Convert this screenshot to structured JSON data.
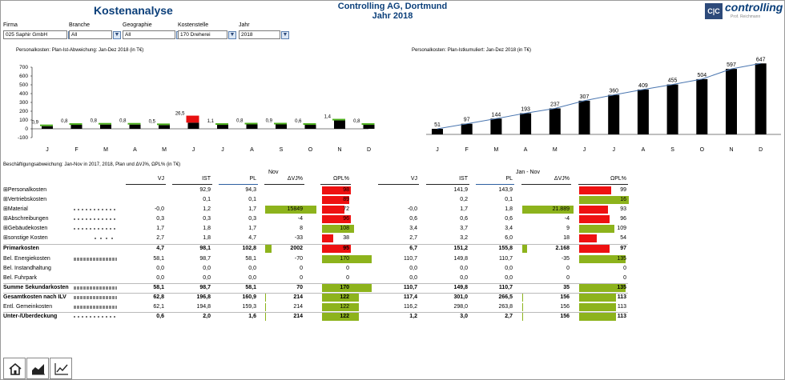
{
  "header": {
    "title": "Kostenanalyse",
    "company": "Controlling AG, Dortmund",
    "year_title": "Jahr 2018",
    "logo_brand": "controlling",
    "logo_sub": "Prof. Reichmann",
    "logo_mark": "C|C"
  },
  "filters": [
    {
      "label": "Firma",
      "value": "025 Saphir GmbH"
    },
    {
      "label": "Branche",
      "value": "All"
    },
    {
      "label": "Geographie",
      "value": "All"
    },
    {
      "label": "Kostenstelle",
      "value": "170 Dreherei"
    },
    {
      "label": "Jahr",
      "value": "2018"
    }
  ],
  "chart_data": [
    {
      "type": "bar",
      "title": "Personalkosten: Plan-Ist-Abweichung: Jan-Dez 2018 (in T€)",
      "categories": [
        "J",
        "F",
        "M",
        "A",
        "M",
        "J",
        "J",
        "A",
        "S",
        "O",
        "N",
        "D"
      ],
      "series": [
        {
          "name": "Ist",
          "values": [
            30,
            45,
            48,
            48,
            42,
            70,
            45,
            50,
            50,
            45,
            95,
            45
          ]
        },
        {
          "name": "Abweichung",
          "values": [
            0.9,
            0.8,
            0.8,
            0.8,
            0.5,
            26.5,
            1.1,
            0.8,
            0.9,
            0.6,
            1.4,
            0.8
          ]
        }
      ],
      "labels": [
        "0,9",
        "0,8",
        "0,8",
        "0,8",
        "0,5",
        "26,5",
        "1,1",
        "0,8",
        "0,9",
        "0,6",
        "1,4",
        "0,8"
      ],
      "yticks": [
        "700",
        "600",
        "500",
        "400",
        "300",
        "200",
        "100",
        "0",
        "-100"
      ],
      "ylim": [
        -100,
        700
      ]
    },
    {
      "type": "bar",
      "title": "Personalkosten: Plan-Istkumuliert: Jan-Dez 2018 (in T€)",
      "categories": [
        "J",
        "F",
        "M",
        "A",
        "M",
        "J",
        "J",
        "A",
        "S",
        "O",
        "N",
        "D"
      ],
      "values": [
        51,
        97,
        144,
        193,
        237,
        307,
        360,
        409,
        455,
        504,
        597,
        647
      ],
      "labels": [
        "51",
        "97",
        "144",
        "193",
        "237",
        "307",
        "360",
        "409",
        "455",
        "504",
        "597",
        "647"
      ],
      "ylim": [
        0,
        700
      ]
    }
  ],
  "table": {
    "title": "Beschäftigungsabweichung: Jan-Nov in 2017, 2018, Plan und ΔVJ%, ΩPL% (in T€)",
    "group_nov": "Nov",
    "group_jannov": "Jan - Nov",
    "columns": [
      "VJ",
      "IST",
      "PL",
      "ΔVJ%",
      "ΩPL%"
    ],
    "rows": [
      {
        "label": "⊞Personalkosten",
        "bold": false,
        "vj": "",
        "ist": "92,9",
        "pl": "94,3",
        "dvj": "",
        "dvj_bar": 0,
        "opl": "98",
        "opl_bar": 36,
        "opl_col": "red",
        "vj2": "",
        "ist2": "141,9",
        "pl2": "143,9",
        "dvj2": "",
        "dvj2_bar": 0,
        "opl2": "99",
        "opl2_bar": 40,
        "opl2_col": "red",
        "spark": ""
      },
      {
        "label": "⊞Vertriebskosten",
        "bold": false,
        "vj": "",
        "ist": "0,1",
        "pl": "0,1",
        "dvj": "",
        "dvj_bar": 0,
        "opl": "89",
        "opl_bar": 34,
        "opl_col": "red",
        "vj2": "",
        "ist2": "0,2",
        "pl2": "0,1",
        "dvj2": "",
        "dvj2_bar": 0,
        "opl2": "16",
        "opl2_bar": 62,
        "opl2_col": "green",
        "spark": ""
      },
      {
        "label": "⊞Material",
        "bold": false,
        "vj": "-0,0",
        "ist": "1,2",
        "pl": "1,7",
        "dvj": "15849",
        "dvj_bar": 64,
        "opl": "72",
        "opl_bar": 28,
        "opl_col": "red",
        "vj2": "-0,0",
        "ist2": "1,7",
        "pl2": "1,8",
        "dvj2": "21.889",
        "dvj2_bar": 64,
        "opl2": "93",
        "opl2_bar": 36,
        "opl2_col": "red",
        "spark": "dash"
      },
      {
        "label": "⊞Abschreibungen",
        "bold": false,
        "vj": "0,3",
        "ist": "0,3",
        "pl": "0,3",
        "dvj": "-4",
        "dvj_bar": 0,
        "opl": "96",
        "opl_bar": 36,
        "opl_col": "red",
        "vj2": "0,6",
        "ist2": "0,6",
        "pl2": "0,6",
        "dvj2": "-4",
        "dvj2_bar": 0,
        "opl2": "96",
        "opl2_bar": 38,
        "opl2_col": "red",
        "spark": "dash"
      },
      {
        "label": "⊞Gebäudekosten",
        "bold": false,
        "vj": "1,7",
        "ist": "1,8",
        "pl": "1,7",
        "dvj": "8",
        "dvj_bar": 0,
        "opl": "108",
        "opl_bar": 40,
        "opl_col": "green",
        "vj2": "3,4",
        "ist2": "3,7",
        "pl2": "3,4",
        "dvj2": "9",
        "dvj2_bar": 0,
        "opl2": "109",
        "opl2_bar": 44,
        "opl2_col": "green",
        "spark": "dash"
      },
      {
        "label": "⊞sonstige Kosten",
        "bold": false,
        "vj": "2,7",
        "ist": "1,8",
        "pl": "4,7",
        "dvj": "-33",
        "dvj_bar": 0,
        "opl": "38",
        "opl_bar": 14,
        "opl_col": "red",
        "vj2": "2,7",
        "ist2": "3,2",
        "pl2": "6,0",
        "dvj2": "18",
        "dvj2_bar": 0,
        "opl2": "54",
        "opl2_bar": 22,
        "opl2_col": "red",
        "spark": "short"
      },
      {
        "label": "Primarkosten",
        "bold": true,
        "vj": "4,7",
        "ist": "98,1",
        "pl": "102,8",
        "dvj": "2002",
        "dvj_bar": 8,
        "opl": "95",
        "opl_bar": 36,
        "opl_col": "red",
        "vj2": "6,7",
        "ist2": "151,2",
        "pl2": "155,8",
        "dvj2": "2.168",
        "dvj2_bar": 6,
        "opl2": "97",
        "opl2_bar": 38,
        "opl2_col": "red",
        "spark": ""
      },
      {
        "label": "Bel. Energiekosten",
        "bold": false,
        "vj": "58,1",
        "ist": "98,7",
        "pl": "58,1",
        "dvj": "-70",
        "dvj_bar": 0,
        "opl": "170",
        "opl_bar": 62,
        "opl_col": "green",
        "vj2": "110,7",
        "ist2": "149,8",
        "pl2": "110,7",
        "dvj2": "-35",
        "dvj2_bar": 0,
        "opl2": "135",
        "opl2_bar": 58,
        "opl2_col": "green",
        "spark": "bars"
      },
      {
        "label": "Bel. Instandhaltung",
        "bold": false,
        "vj": "0,0",
        "ist": "0,0",
        "pl": "0,0",
        "dvj": "0",
        "dvj_bar": 0,
        "opl": "0",
        "opl_bar": 0,
        "opl_col": "red",
        "vj2": "0,0",
        "ist2": "0,0",
        "pl2": "0,0",
        "dvj2": "0",
        "dvj2_bar": 0,
        "opl2": "0",
        "opl2_bar": 0,
        "opl2_col": "red",
        "spark": ""
      },
      {
        "label": "Bel. Fuhrpark",
        "bold": false,
        "vj": "0,0",
        "ist": "0,0",
        "pl": "0,0",
        "dvj": "0",
        "dvj_bar": 0,
        "opl": "0",
        "opl_bar": 0,
        "opl_col": "red",
        "vj2": "0,0",
        "ist2": "0,0",
        "pl2": "0,0",
        "dvj2": "0",
        "dvj2_bar": 0,
        "opl2": "0",
        "opl2_bar": 0,
        "opl2_col": "red",
        "spark": ""
      },
      {
        "label": "Summe Sekundarkosten",
        "bold": true,
        "vj": "58,1",
        "ist": "98,7",
        "pl": "58,1",
        "dvj": "70",
        "dvj_bar": 0,
        "opl": "170",
        "opl_bar": 62,
        "opl_col": "green",
        "vj2": "110,7",
        "ist2": "149,8",
        "pl2": "110,7",
        "dvj2": "35",
        "dvj2_bar": 0,
        "opl2": "135",
        "opl2_bar": 58,
        "opl2_col": "green",
        "spark": "bars"
      },
      {
        "label": "Gesamtkosten nach ILV",
        "bold": true,
        "vj": "62,8",
        "ist": "196,8",
        "pl": "160,9",
        "dvj": "214",
        "dvj_bar": 1,
        "opl": "122",
        "opl_bar": 46,
        "opl_col": "green",
        "vj2": "117,4",
        "ist2": "301,0",
        "pl2": "266,5",
        "dvj2": "156",
        "dvj2_bar": 1,
        "opl2": "113",
        "opl2_bar": 46,
        "opl2_col": "green",
        "spark": "bars"
      },
      {
        "label": "Entl. Gemeinkosten",
        "bold": false,
        "vj": "62,1",
        "ist": "194,8",
        "pl": "159,3",
        "dvj": "214",
        "dvj_bar": 1,
        "opl": "122",
        "opl_bar": 46,
        "opl_col": "green",
        "vj2": "116,2",
        "ist2": "298,0",
        "pl2": "263,8",
        "dvj2": "156",
        "dvj2_bar": 1,
        "opl2": "113",
        "opl2_bar": 46,
        "opl2_col": "green",
        "spark": "bars"
      },
      {
        "label": "Unter-/Überdeckung",
        "bold": true,
        "vj": "0,6",
        "ist": "2,0",
        "pl": "1,6",
        "dvj": "214",
        "dvj_bar": 1,
        "opl": "122",
        "opl_bar": 46,
        "opl_col": "green",
        "vj2": "1,2",
        "ist2": "3,0",
        "pl2": "2,7",
        "dvj2": "156",
        "dvj2_bar": 1,
        "opl2": "113",
        "opl2_bar": 46,
        "opl2_col": "green",
        "spark": "dash"
      }
    ]
  },
  "nav": [
    {
      "name": "home-icon"
    },
    {
      "name": "area-chart-icon"
    },
    {
      "name": "line-chart-icon"
    }
  ]
}
